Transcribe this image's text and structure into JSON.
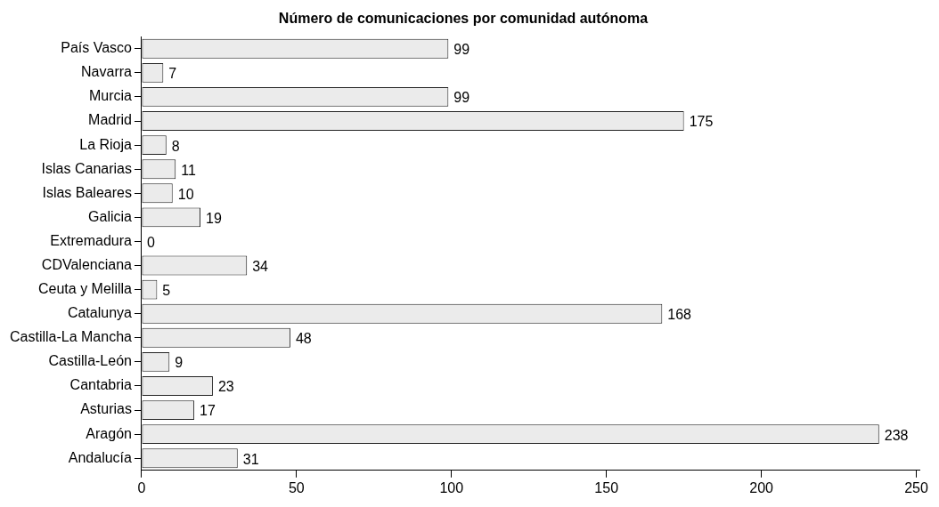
{
  "chart_data": {
    "type": "bar",
    "orientation": "horizontal",
    "title": "Número de comunicaciones por comunidad autónoma",
    "categories": [
      "País Vasco",
      "Navarra",
      "Murcia",
      "Madrid",
      "La Rioja",
      "Islas Canarias",
      "Islas Baleares",
      "Galicia",
      "Extremadura",
      "CDValenciana",
      "Ceuta y Melilla",
      "Catalunya",
      "Castilla-La Mancha",
      "Castilla-León",
      "Cantabria",
      "Asturias",
      "Aragón",
      "Andalucía"
    ],
    "values": [
      99,
      7,
      99,
      175,
      8,
      11,
      10,
      19,
      0,
      34,
      5,
      168,
      48,
      9,
      23,
      17,
      238,
      31
    ],
    "color": "#ebebeb",
    "xlim": [
      0,
      251
    ],
    "xticks": [
      0,
      50,
      100,
      150,
      200,
      250
    ],
    "grid": false,
    "legend": false,
    "data_labels": true
  }
}
